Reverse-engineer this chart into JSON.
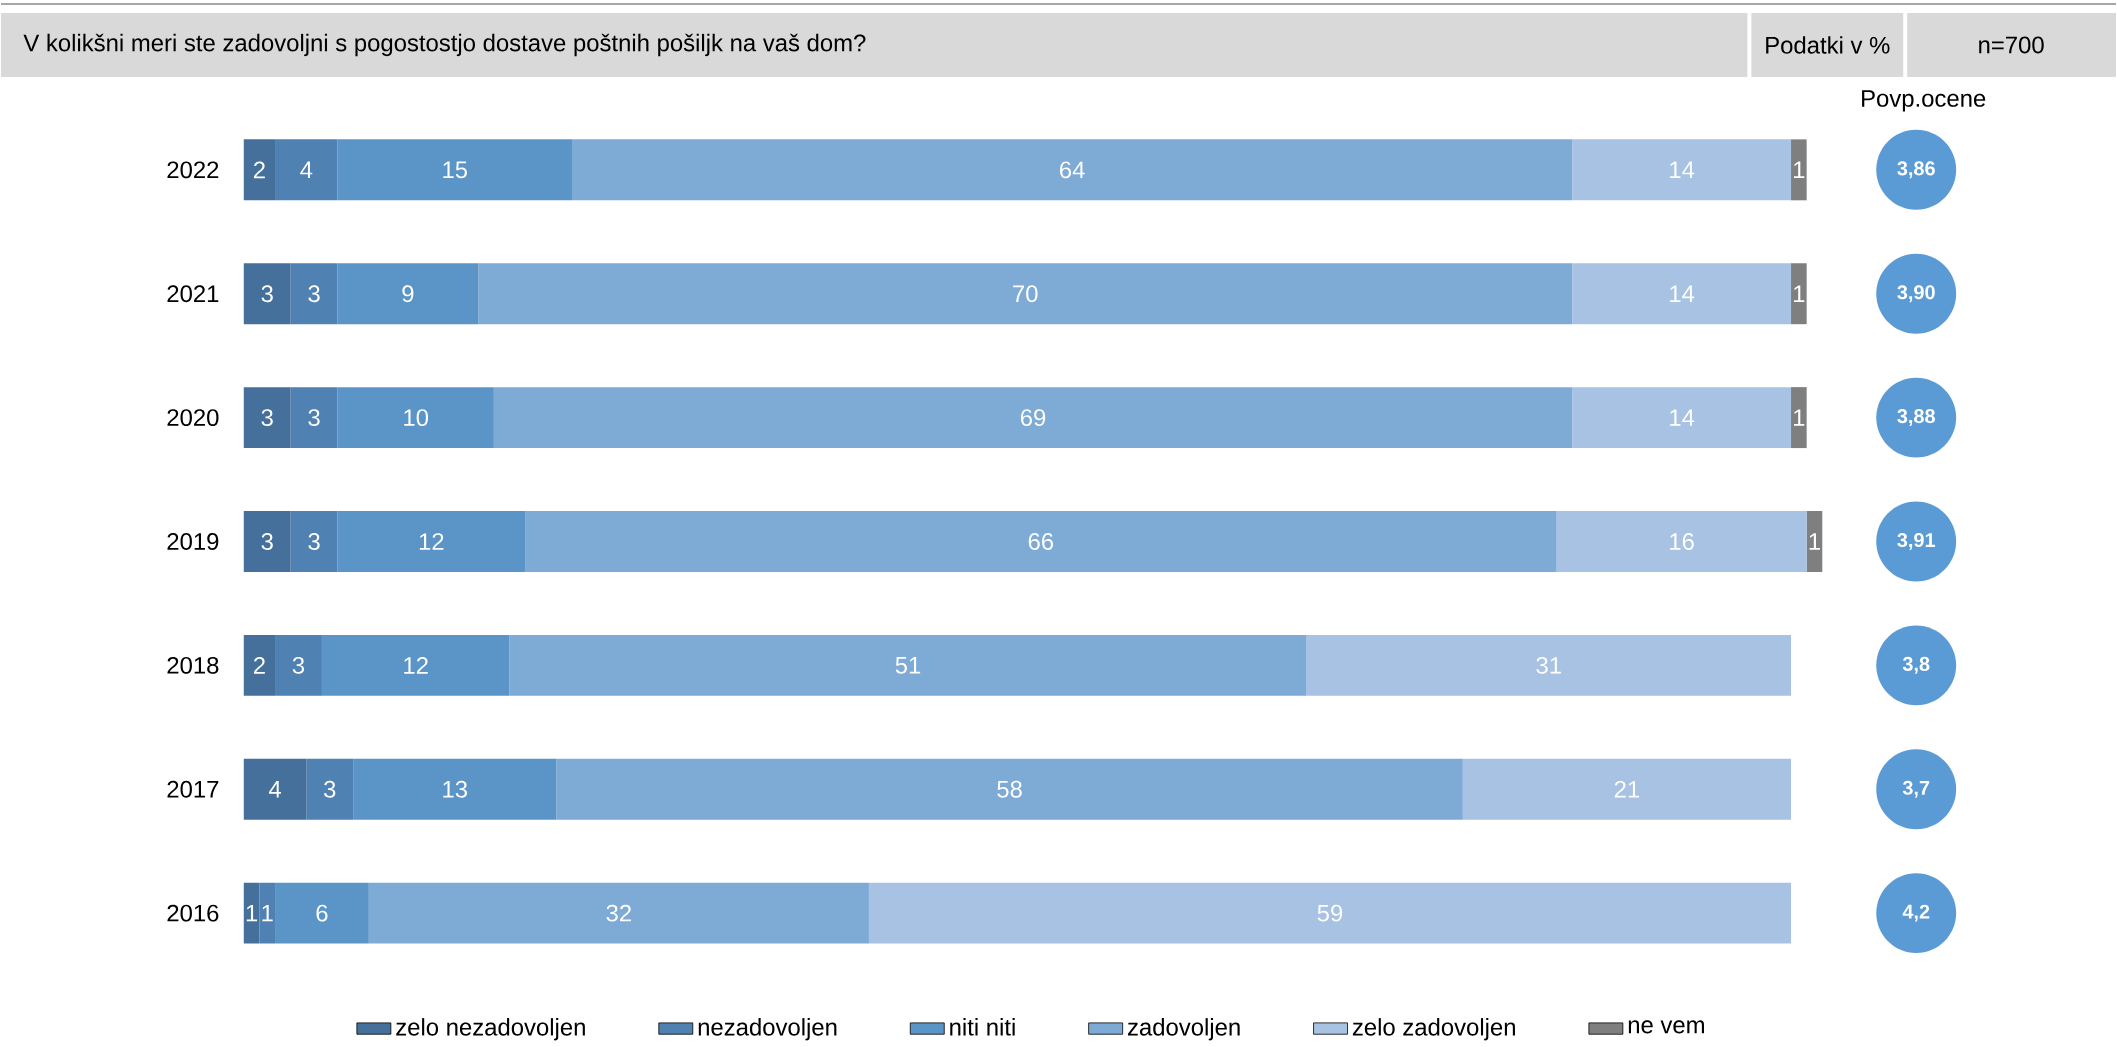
{
  "chart_data": {
    "type": "bar",
    "orientation": "horizontal",
    "stacked": true,
    "title": "V kolikšni meri ste zadovoljni s pogostostjo dostave poštnih pošiljk na vaš dom?",
    "categories": [
      "2022",
      "2021",
      "2020",
      "2019",
      "2018",
      "2017",
      "2016"
    ],
    "series": [
      {
        "name": "zelo nezadovoljen",
        "color": "#44709b",
        "values": [
          2,
          3,
          3,
          3,
          2,
          4,
          1
        ]
      },
      {
        "name": "nezadovoljen",
        "color": "#4f81b3",
        "values": [
          4,
          3,
          3,
          3,
          3,
          3,
          1
        ]
      },
      {
        "name": "niti niti",
        "color": "#5b95c8",
        "values": [
          15,
          9,
          10,
          12,
          12,
          13,
          6
        ]
      },
      {
        "name": "zadovoljen",
        "color": "#7eaad6",
        "values": [
          64,
          70,
          69,
          66,
          51,
          58,
          32
        ]
      },
      {
        "name": "zelo zadovoljen",
        "color": "#a7c2e2",
        "values": [
          14,
          14,
          14,
          16,
          31,
          21,
          59
        ]
      },
      {
        "name": "ne vem",
        "color": "#7f7f7f",
        "values": [
          1,
          1,
          1,
          1,
          null,
          null,
          null
        ]
      }
    ],
    "tick_labels": "y",
    "data_labels": true,
    "legend": "bottom",
    "annotations": [
      "Podatki v %",
      "n=700",
      "Povp.ocene",
      "3,86",
      "3,90",
      "3,88",
      "3,91",
      "3,8",
      "3,7",
      "4,2"
    ]
  }
}
